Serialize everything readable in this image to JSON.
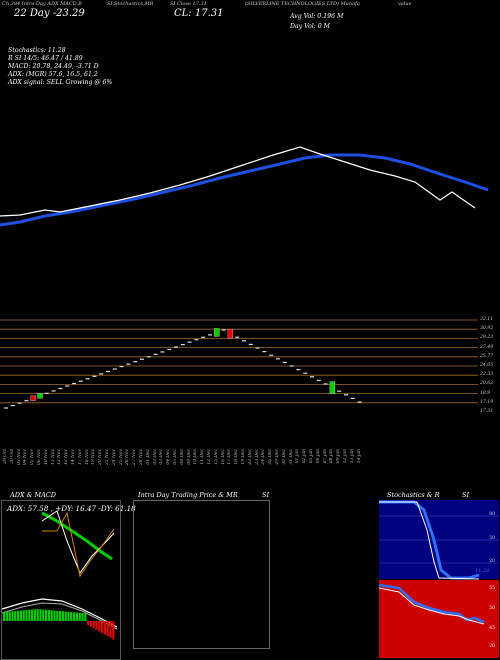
{
  "header": {
    "top_left": "Ch 384 Intra Day ADX MACD,B",
    "top_left2": "SI,Stochastics,MR",
    "top_mid": "SI Close 17.31",
    "top_right": "(SILVERLINE TECHNOLOGIES LTD) Munafa",
    "top_right2": "value"
  },
  "quote": {
    "line1": "22  Day  -23.29",
    "close": "CL: 17.31",
    "avg_vol": "Avg Vol: 0.196  M",
    "day_vol": "Day Vol: 0   M"
  },
  "indicators": [
    "Stochastics: 11.28",
    "R                    SI 14/5: 46.47 / 41.89",
    "MACD: 20.78,  24.49, -3.71 D",
    "",
    "ADX:                          (MGR) 57.6,  16.5,  61.2",
    "ADX  signal: SELL  Growing @ 6%"
  ],
  "price_levels": [
    "32.11",
    "30.92",
    "29.23",
    "27.49",
    "25.77",
    "24.05",
    "22.33",
    "20.62",
    "18.9",
    "17.19",
    "17.31"
  ],
  "dates": [
    "29 Oct",
    "30 Oct",
    "03 Nov",
    "04 Nov",
    "05 Nov",
    "06 Nov",
    "10 Nov",
    "11 Nov",
    "12 Nov",
    "13 Nov",
    "14 Nov",
    "17 Nov",
    "18 Nov",
    "19 Nov",
    "20 Nov",
    "21 Nov",
    "24 Nov",
    "25 Nov",
    "26 Nov",
    "27 Nov",
    "28 Nov",
    "01 Dec",
    "02 Dec",
    "03 Dec",
    "04 Dec",
    "05 Dec",
    "08 Dec",
    "09 Dec",
    "10 Dec",
    "11 Dec",
    "12 Dec",
    "15 Dec",
    "16 Dec",
    "17 Dec",
    "18 Dec",
    "19 Dec",
    "22 Dec",
    "23 Dec",
    "24 Dec",
    "26 Dec",
    "29 Dec",
    "30 Dec",
    "31 Dec",
    "01 Jan",
    "02 Jan",
    "05 Jan",
    "06 Jan",
    "07 Jan",
    "08 Jan",
    "09 Jan",
    "12 Jan",
    "13 Jan",
    "14 Jan"
  ],
  "panels": {
    "adx": {
      "title": "ADX  & MACD",
      "readout": "ADX: 57.58  , +DY: 16.47 -DY: 61.18"
    },
    "intraday": {
      "title": "Intra  Day Trading Price  & MR",
      "title2": "SI"
    },
    "stoch": {
      "title": "Stochastics & R",
      "title2": "SI",
      "levels": [
        "80",
        "50",
        "20"
      ],
      "readout": "11.28",
      "rsi_levels": [
        "55",
        "50",
        "45",
        "20"
      ]
    }
  },
  "colors": {
    "bg": "#000000",
    "ma": "#1f4fe0",
    "price": "#ffffff",
    "grid": "#a0692a",
    "green": "#00cc00",
    "red": "#e00000",
    "stoch_bg": "#000080",
    "rsi_bg": "#cc0000"
  }
}
